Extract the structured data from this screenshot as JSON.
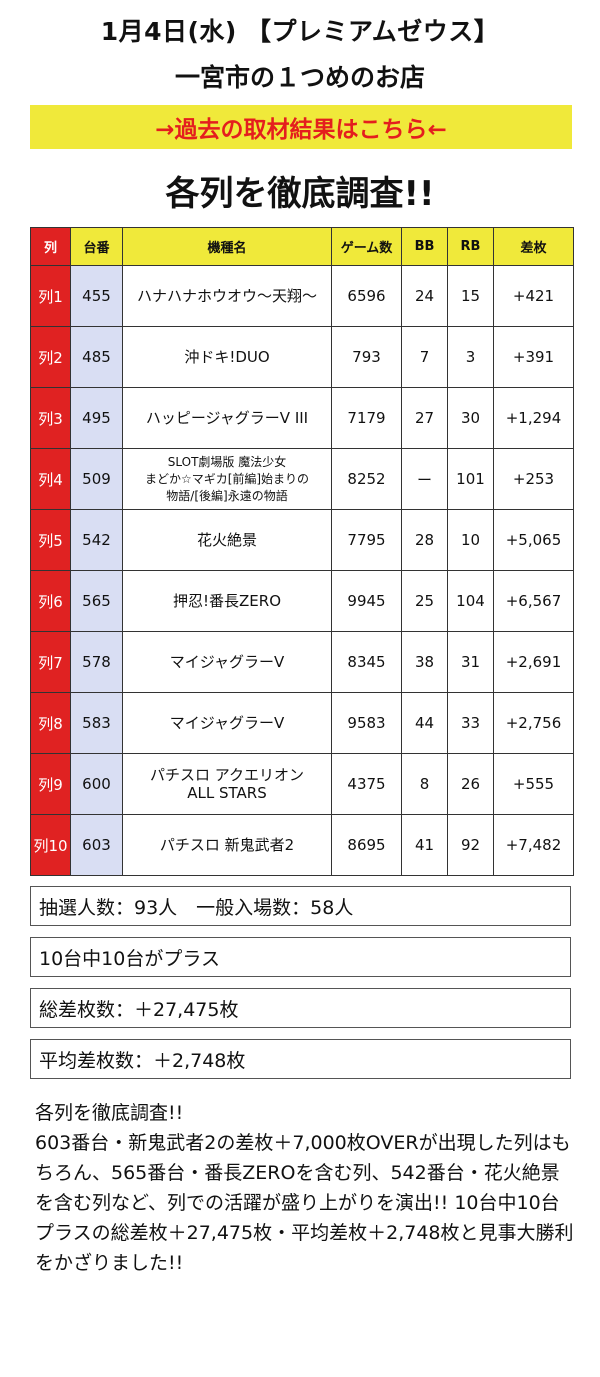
{
  "header": {
    "title": "1月4日(水) 【プレミアムゼウス】",
    "subtitle": "一宮市の１つめのお店",
    "banner_link": "→過去の取材結果はこちら←",
    "section_heading": "各列を徹底調査!!"
  },
  "table": {
    "columns": [
      "列",
      "台番",
      "機種名",
      "ゲーム数",
      "BB",
      "RB",
      "差枚"
    ],
    "rows": [
      {
        "retsu": "列1",
        "unit": "455",
        "model": "ハナハナホウオウ〜天翔〜",
        "games": "6596",
        "bb": "24",
        "rb": "15",
        "diff": "+421"
      },
      {
        "retsu": "列2",
        "unit": "485",
        "model": "沖ドキ!DUO",
        "games": "793",
        "bb": "7",
        "rb": "3",
        "diff": "+391"
      },
      {
        "retsu": "列3",
        "unit": "495",
        "model": "ハッピージャグラーV III",
        "games": "7179",
        "bb": "27",
        "rb": "30",
        "diff": "+1,294"
      },
      {
        "retsu": "列4",
        "unit": "509",
        "model": "SLOT劇場版 魔法少女\nまどか☆マギカ[前編]始まりの\n物語/[後編]永遠の物語",
        "games": "8252",
        "bb": "ー",
        "rb": "101",
        "diff": "+253"
      },
      {
        "retsu": "列5",
        "unit": "542",
        "model": "花火絶景",
        "games": "7795",
        "bb": "28",
        "rb": "10",
        "diff": "+5,065"
      },
      {
        "retsu": "列6",
        "unit": "565",
        "model": "押忍!番長ZERO",
        "games": "9945",
        "bb": "25",
        "rb": "104",
        "diff": "+6,567"
      },
      {
        "retsu": "列7",
        "unit": "578",
        "model": "マイジャグラーV",
        "games": "8345",
        "bb": "38",
        "rb": "31",
        "diff": "+2,691"
      },
      {
        "retsu": "列8",
        "unit": "583",
        "model": "マイジャグラーV",
        "games": "9583",
        "bb": "44",
        "rb": "33",
        "diff": "+2,756"
      },
      {
        "retsu": "列9",
        "unit": "600",
        "model": "パチスロ アクエリオン\nALL STARS",
        "games": "4375",
        "bb": "8",
        "rb": "26",
        "diff": "+555"
      },
      {
        "retsu": "列10",
        "unit": "603",
        "model": "パチスロ 新鬼武者2",
        "games": "8695",
        "bb": "41",
        "rb": "92",
        "diff": "+7,482"
      }
    ]
  },
  "stats": {
    "lottery": "抽選人数：93人　一般入場数：58人",
    "plus_count": "10台中10台がプラス",
    "total_diff": "総差枚数：＋27,475枚",
    "avg_diff": "平均差枚数：＋2,748枚"
  },
  "summary": "各列を徹底調査!!\n603番台・新鬼武者2の差枚＋7,000枚OVERが出現した列はもちろん、565番台・番長ZEROを含む列、542番台・花火絶景を含む列など、列での活躍が盛り上がりを演出!! 10台中10台プラスの総差枚＋27,475枚・平均差枚＋2,748枚と見事大勝利をかざりました!!",
  "colors": {
    "accent_yellow": "#f0e93a",
    "accent_red": "#e02222",
    "unit_blue": "#d9def3"
  }
}
